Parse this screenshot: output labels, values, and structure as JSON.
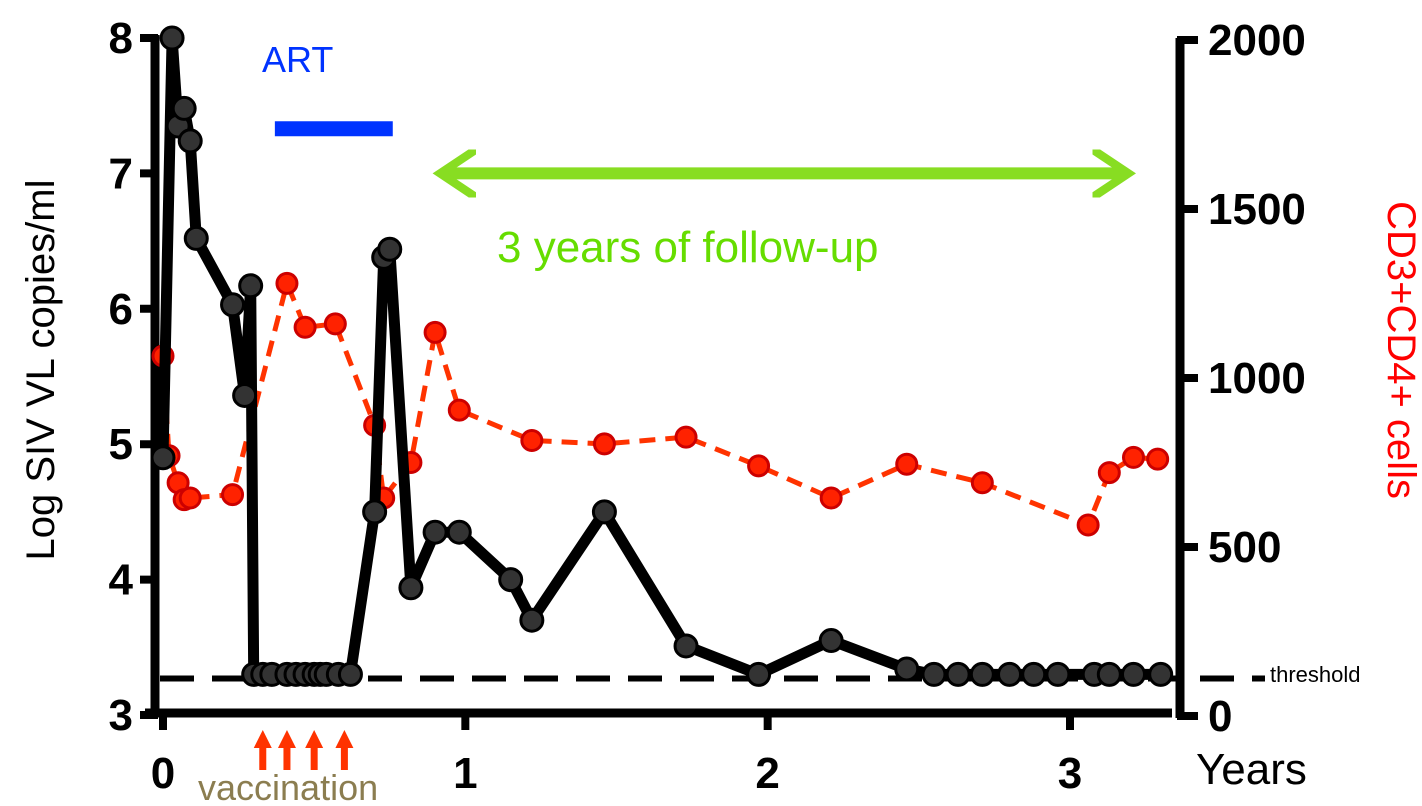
{
  "chart_data": {
    "type": "line",
    "x_label": "Years",
    "y_left_label": "Log SIV VL copies/ml",
    "y_right_label": "CD3+CD4+ cells",
    "x_ticks": [
      0,
      1,
      2,
      3
    ],
    "x_tick_labels": [
      "0",
      "1",
      "2",
      "3"
    ],
    "xlim": [
      0,
      3.35
    ],
    "y_left_ticks": [
      3,
      4,
      5,
      6,
      7,
      8
    ],
    "y_left_tick_labels": [
      "3",
      "4",
      "5",
      "6",
      "7",
      "8"
    ],
    "y_left_lim": [
      3,
      8
    ],
    "y_right_ticks": [
      0,
      500,
      1000,
      1500,
      2000
    ],
    "y_right_tick_labels": [
      "0",
      "500",
      "1000",
      "1500",
      "2000"
    ],
    "y_right_lim": [
      0,
      2000
    ],
    "grid": false,
    "series": [
      {
        "axis": "left",
        "color": "#000000",
        "marker_color": "#333333",
        "style": "solid",
        "x": [
          0.0,
          0.03,
          0.05,
          0.07,
          0.09,
          0.11,
          0.23,
          0.27,
          0.29,
          0.3,
          0.33,
          0.36,
          0.41,
          0.44,
          0.47,
          0.5,
          0.52,
          0.54,
          0.58,
          0.62,
          0.7,
          0.73,
          0.75,
          0.82,
          0.9,
          0.98,
          1.15,
          1.22,
          1.46,
          1.73,
          1.97,
          2.21,
          2.46,
          2.55,
          2.63,
          2.71,
          2.8,
          2.88,
          2.96,
          3.08,
          3.13,
          3.21,
          3.3
        ],
        "y": [
          4.9,
          8.0,
          7.35,
          7.48,
          7.24,
          6.52,
          6.03,
          5.36,
          6.17,
          3.3,
          3.3,
          3.3,
          3.3,
          3.3,
          3.3,
          3.3,
          3.3,
          3.3,
          3.3,
          3.3,
          4.5,
          6.38,
          6.44,
          3.94,
          4.35,
          4.35,
          4.0,
          3.7,
          4.5,
          3.51,
          3.3,
          3.55,
          3.34,
          3.3,
          3.3,
          3.3,
          3.3,
          3.3,
          3.3,
          3.3,
          3.3,
          3.3,
          3.3
        ]
      },
      {
        "axis": "right",
        "color": "#ff3300",
        "marker_color": "#ff2200",
        "style": "dashed",
        "x": [
          0.0,
          0.02,
          0.05,
          0.07,
          0.09,
          0.23,
          0.41,
          0.47,
          0.57,
          0.7,
          0.73,
          0.82,
          0.9,
          0.98,
          1.22,
          1.46,
          1.73,
          1.97,
          2.21,
          2.46,
          2.71,
          3.06,
          3.13,
          3.21,
          3.29
        ],
        "y": [
          1065,
          770,
          690,
          640,
          645,
          655,
          1280,
          1150,
          1160,
          860,
          645,
          750,
          1135,
          905,
          815,
          805,
          825,
          740,
          645,
          745,
          690,
          565,
          720,
          765,
          760
        ]
      }
    ],
    "threshold_label": "threshold",
    "threshold_value": 3.27,
    "annotations": {
      "art_label": "ART",
      "art_range": [
        0.37,
        0.76
      ],
      "art_level": 7.33,
      "follow_up_label": "3 years of follow-up",
      "follow_up_range": [
        0.84,
        3.27
      ],
      "follow_up_level": 7.0,
      "vaccination_label": "vaccination",
      "vaccination_times": [
        0.33,
        0.41,
        0.5,
        0.6
      ]
    }
  }
}
